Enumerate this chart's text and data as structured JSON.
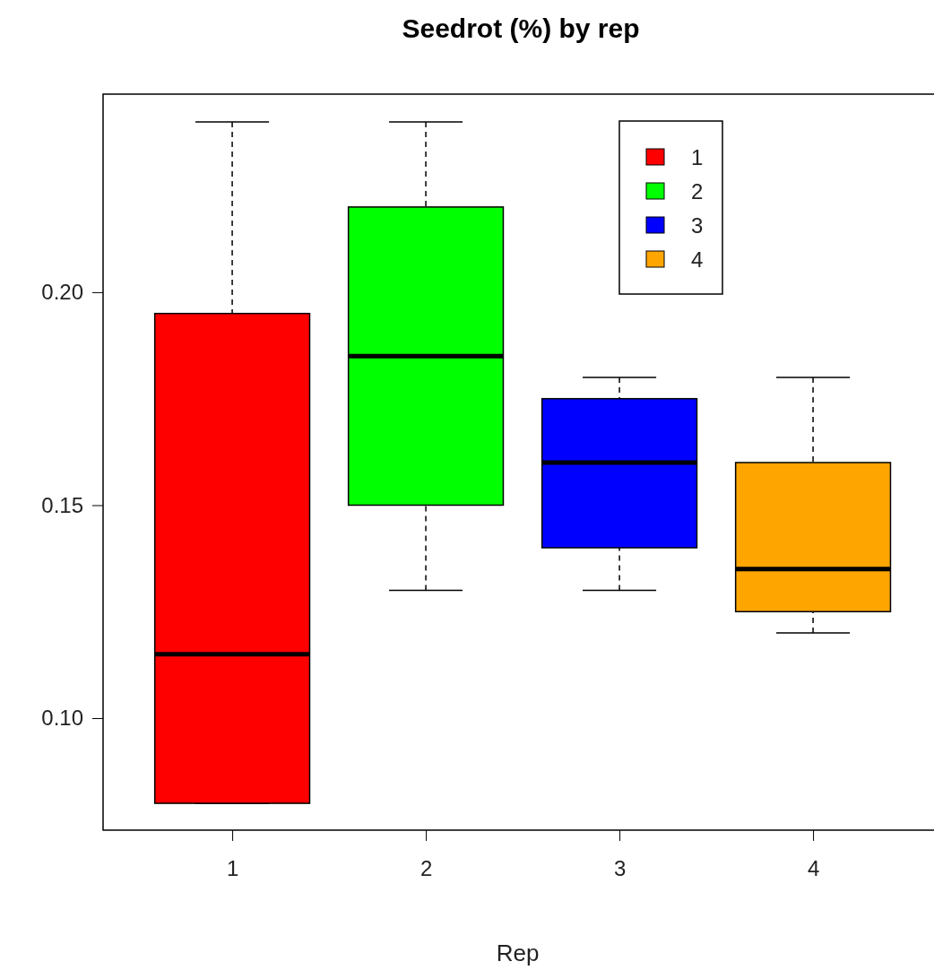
{
  "chart_data": {
    "type": "box",
    "title": "Seedrot (%) by rep",
    "xlabel": "Rep",
    "categories": [
      "1",
      "2",
      "3",
      "4"
    ],
    "series": [
      {
        "name": "1",
        "color": "#ff0000",
        "boxes": [
          {
            "low": 0.08,
            "q1": 0.08,
            "median": 0.115,
            "q3": 0.195,
            "high": 0.24
          },
          null,
          null,
          null
        ]
      },
      {
        "name": "2",
        "color": "#00ff00",
        "boxes": [
          null,
          {
            "low": 0.13,
            "q1": 0.15,
            "median": 0.185,
            "q3": 0.22,
            "high": 0.24
          },
          null,
          null
        ]
      },
      {
        "name": "3",
        "color": "#0000ff",
        "boxes": [
          null,
          null,
          {
            "low": 0.13,
            "q1": 0.14,
            "median": 0.16,
            "q3": 0.175,
            "high": 0.18
          },
          null
        ]
      },
      {
        "name": "4",
        "color": "#ffa500",
        "boxes": [
          null,
          null,
          null,
          {
            "low": 0.12,
            "q1": 0.125,
            "median": 0.135,
            "q3": 0.16,
            "high": 0.18
          }
        ]
      }
    ],
    "ylim": [
      0.0737,
      0.2465
    ],
    "yticks": [
      {
        "value": 0.1,
        "label": "0.10"
      },
      {
        "value": 0.15,
        "label": "0.15"
      },
      {
        "value": 0.2,
        "label": "0.20"
      }
    ],
    "legend": "top right"
  }
}
